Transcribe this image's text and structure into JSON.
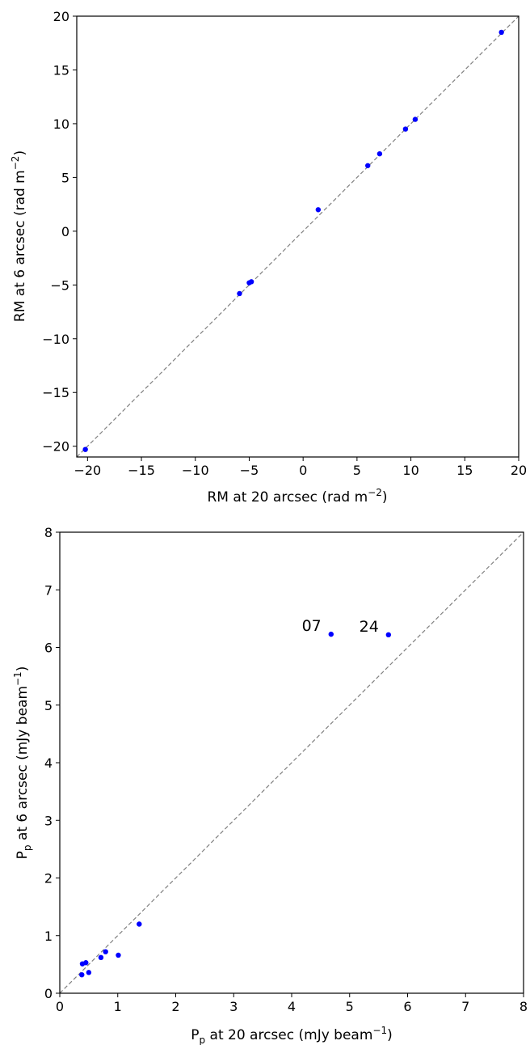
{
  "chart_data": [
    {
      "type": "scatter",
      "xlabel_main": "RM at 20 arcsec (rad m",
      "xlabel_sup": "−2",
      "xlabel_tail": ")",
      "ylabel_main": "RM at 6 arcsec (rad m",
      "ylabel_sup": "−2",
      "ylabel_tail": ")",
      "xlim": [
        -21,
        20
      ],
      "ylim": [
        -21,
        20
      ],
      "xticks": [
        -20,
        -15,
        -10,
        -5,
        0,
        5,
        10,
        15,
        20
      ],
      "yticks": [
        -20,
        -15,
        -10,
        -5,
        0,
        5,
        10,
        15,
        20
      ],
      "xtick_labels": [
        "−20",
        "−15",
        "−10",
        "−5",
        "0",
        "5",
        "10",
        "15",
        "20"
      ],
      "ytick_labels": [
        "−20",
        "−15",
        "−10",
        "−5",
        "0",
        "5",
        "10",
        "15",
        "20"
      ],
      "reference_line": "y = x (dashed gray)",
      "marker_color": "#0000ff",
      "line_color": "#808080",
      "points": [
        {
          "x": -20.2,
          "y": -20.3
        },
        {
          "x": -5.9,
          "y": -5.8
        },
        {
          "x": -5.0,
          "y": -4.8
        },
        {
          "x": -4.8,
          "y": -4.7
        },
        {
          "x": 1.4,
          "y": 2.0
        },
        {
          "x": 6.0,
          "y": 6.1
        },
        {
          "x": 7.1,
          "y": 7.2
        },
        {
          "x": 9.5,
          "y": 9.5
        },
        {
          "x": 10.4,
          "y": 10.4
        },
        {
          "x": 18.4,
          "y": 18.5
        }
      ]
    },
    {
      "type": "scatter",
      "xlabel_main": "P",
      "xlabel_sub": "p",
      "xlabel_rest": " at 20 arcsec (mJy beam",
      "xlabel_sup": "−1",
      "xlabel_tail": ")",
      "ylabel_main": "P",
      "ylabel_sub": "p",
      "ylabel_rest": " at 6 arcsec (mJy beam",
      "ylabel_sup": "−1",
      "ylabel_tail": ")",
      "xlim": [
        0,
        8
      ],
      "ylim": [
        0,
        8
      ],
      "xticks": [
        0,
        1,
        2,
        3,
        4,
        5,
        6,
        7,
        8
      ],
      "yticks": [
        0,
        1,
        2,
        3,
        4,
        5,
        6,
        7,
        8
      ],
      "xtick_labels": [
        "0",
        "1",
        "2",
        "3",
        "4",
        "5",
        "6",
        "7",
        "8"
      ],
      "ytick_labels": [
        "0",
        "1",
        "2",
        "3",
        "4",
        "5",
        "6",
        "7",
        "8"
      ],
      "reference_line": "y = x (dashed gray)",
      "marker_color": "#0000ff",
      "line_color": "#808080",
      "points": [
        {
          "x": 0.38,
          "y": 0.32
        },
        {
          "x": 0.39,
          "y": 0.51
        },
        {
          "x": 0.45,
          "y": 0.53
        },
        {
          "x": 0.5,
          "y": 0.36
        },
        {
          "x": 0.71,
          "y": 0.62
        },
        {
          "x": 0.79,
          "y": 0.72
        },
        {
          "x": 1.01,
          "y": 0.66
        },
        {
          "x": 1.37,
          "y": 1.2
        },
        {
          "x": 4.68,
          "y": 6.23
        },
        {
          "x": 5.67,
          "y": 6.22
        }
      ],
      "annotations": [
        {
          "text": "07",
          "x": 4.68,
          "y": 6.23
        },
        {
          "text": "24",
          "x": 5.67,
          "y": 6.22
        }
      ]
    }
  ]
}
